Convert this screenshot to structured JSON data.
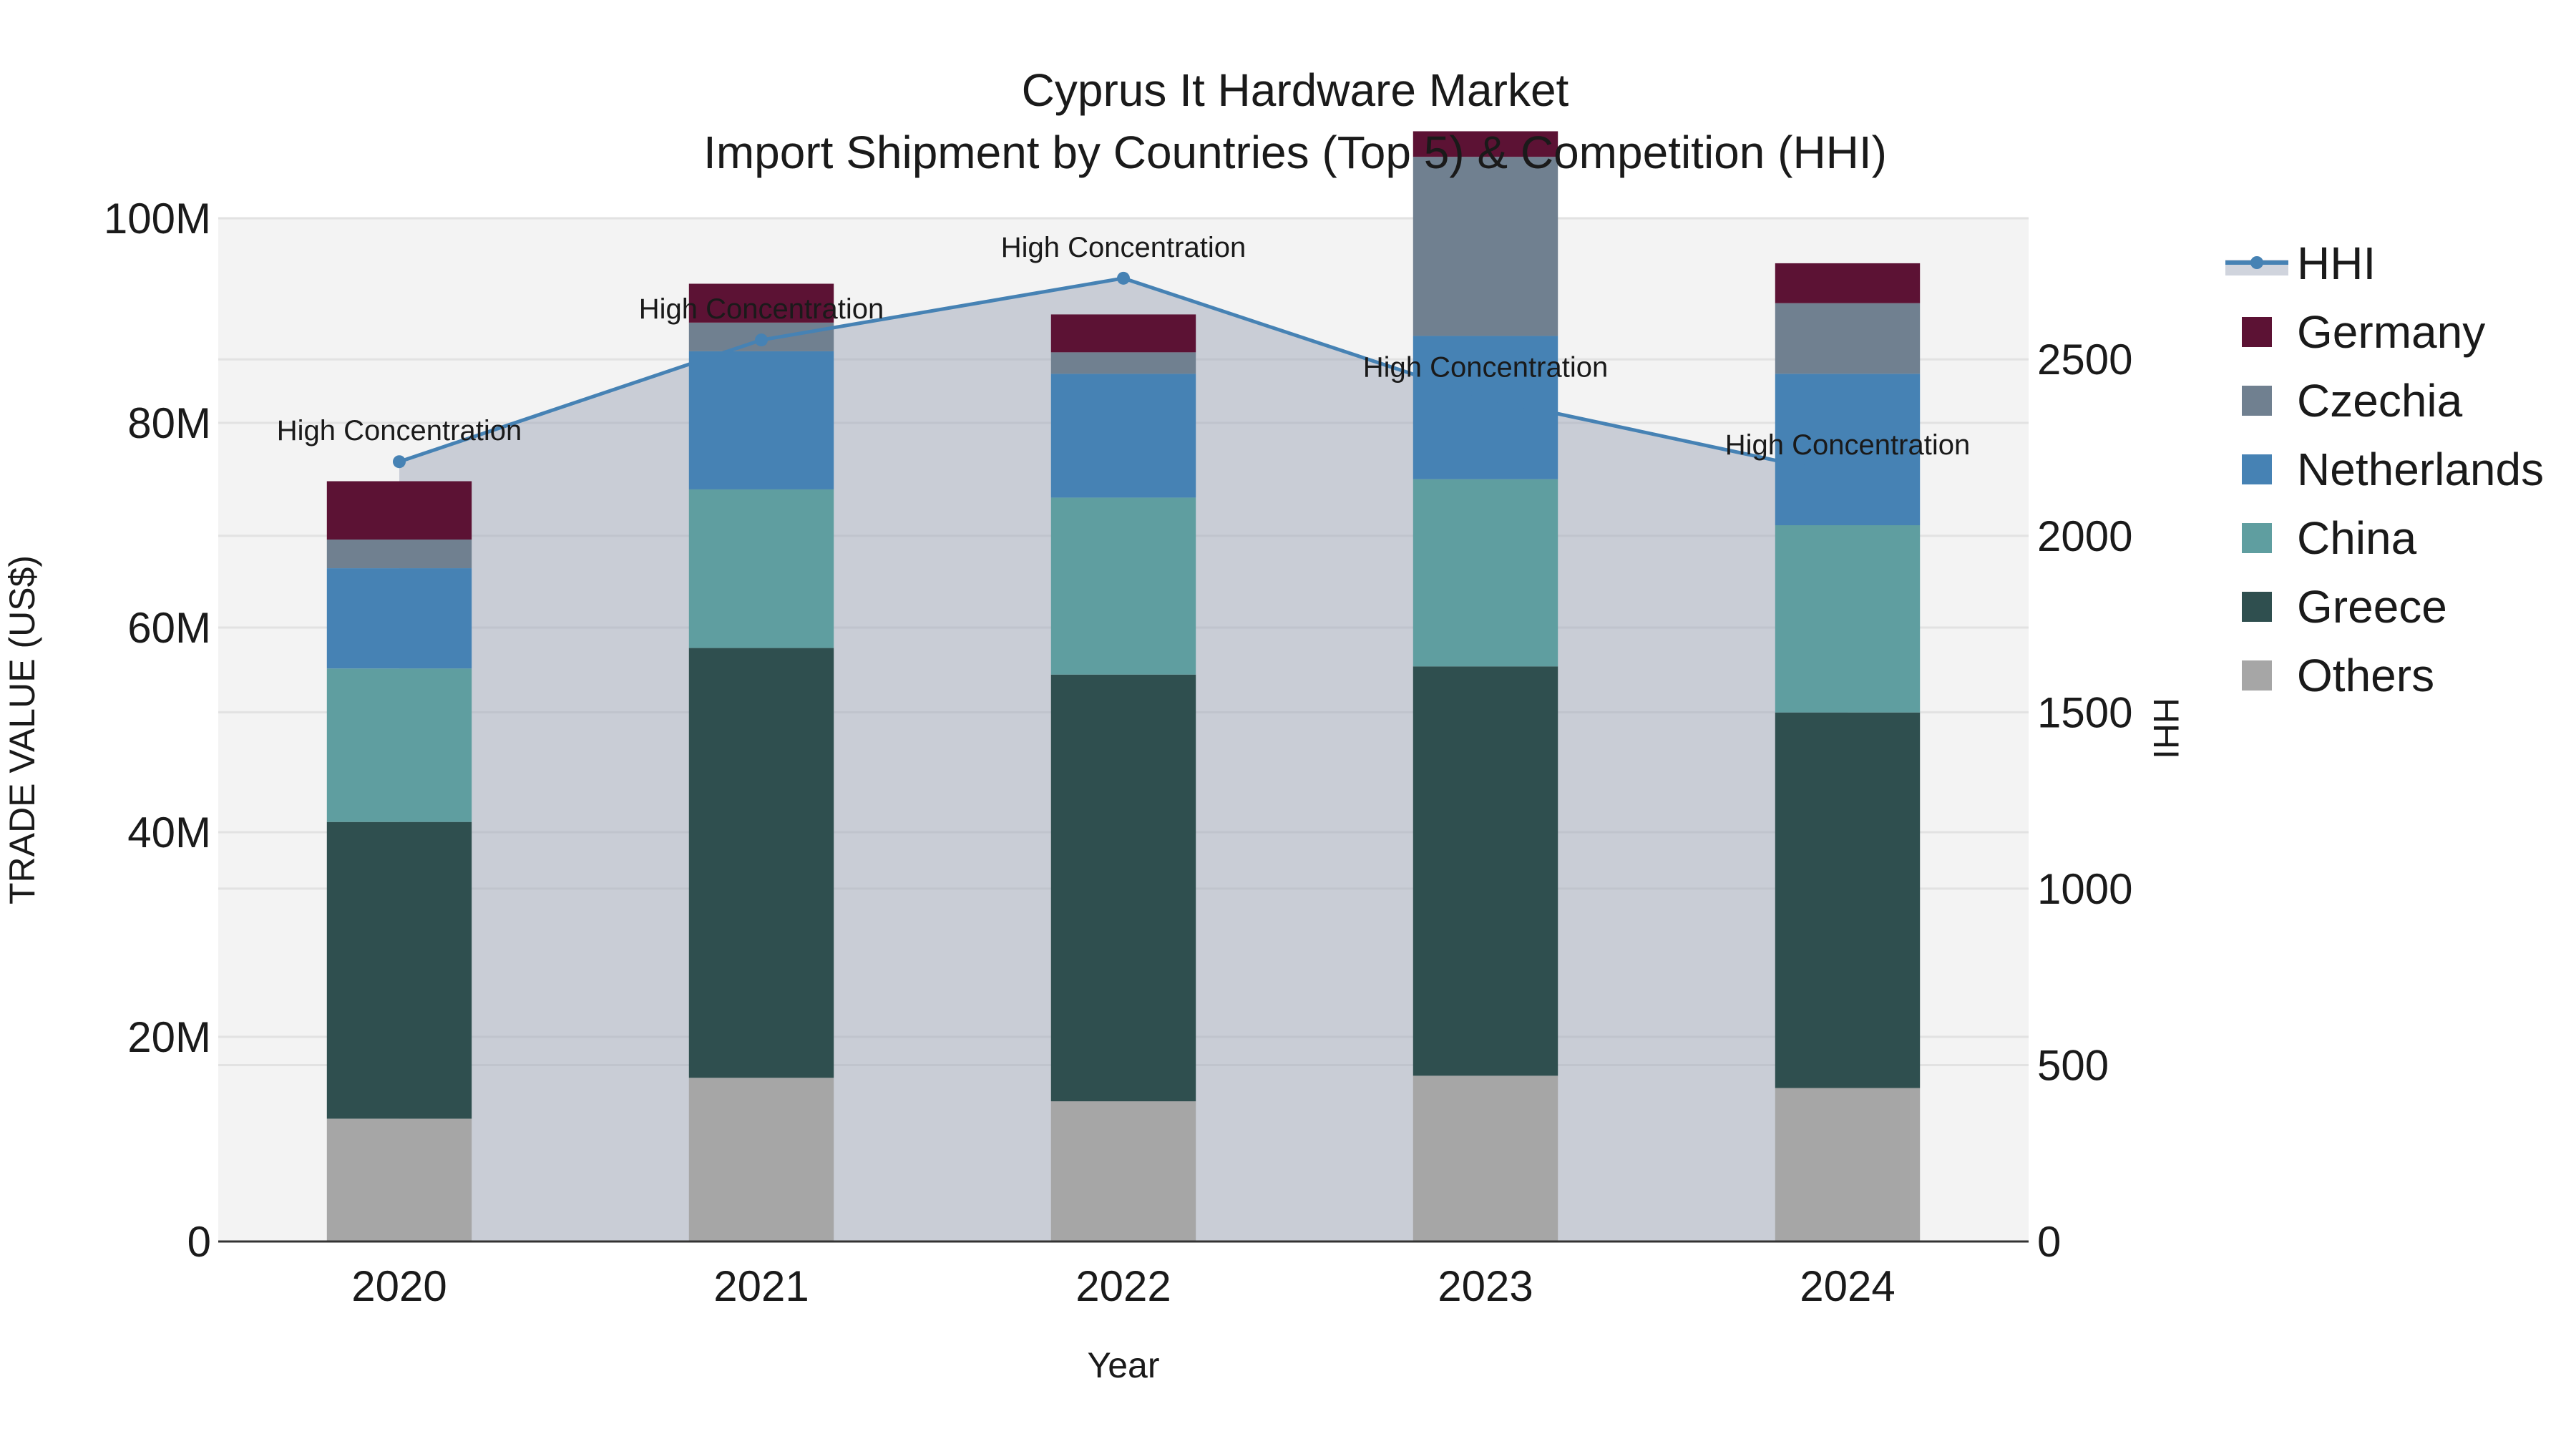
{
  "chart_data": {
    "type": "bar",
    "stacked": true,
    "title": "Cyprus It Hardware Market",
    "subtitle": "Import Shipment by Countries (Top 5) & Competition (HHI)",
    "xlabel": "Year",
    "ylabel": "TRADE VALUE (US$)",
    "y2label": "HHI",
    "categories": [
      "2020",
      "2021",
      "2022",
      "2023",
      "2024"
    ],
    "ylim": [
      0,
      100000000
    ],
    "y_ticks": [
      0,
      20000000,
      40000000,
      60000000,
      80000000,
      100000000
    ],
    "y_tick_labels": [
      "0",
      "20M",
      "40M",
      "60M",
      "80M",
      "100M"
    ],
    "y2lim": [
      0,
      2900
    ],
    "y2_ticks": [
      0,
      500,
      1000,
      1500,
      2000,
      2500
    ],
    "y2_tick_labels": [
      "0",
      "500",
      "1000",
      "1500",
      "2000",
      "2500"
    ],
    "grid": true,
    "legend_position": "right",
    "series": [
      {
        "name": "Others",
        "color": "#a6a6a6",
        "values": [
          12000000,
          16000000,
          13700000,
          16200000,
          15000000
        ]
      },
      {
        "name": "Greece",
        "color": "#2f4f4f",
        "values": [
          29000000,
          42000000,
          41700000,
          40000000,
          36700000
        ]
      },
      {
        "name": "China",
        "color": "#5f9ea0",
        "values": [
          15000000,
          15500000,
          17300000,
          18300000,
          18300000
        ]
      },
      {
        "name": "Netherlands",
        "color": "#4682b4",
        "values": [
          9800000,
          13500000,
          12100000,
          14000000,
          14800000
        ]
      },
      {
        "name": "Czechia",
        "color": "#708090",
        "values": [
          2800000,
          2800000,
          2100000,
          17500000,
          6900000
        ]
      },
      {
        "name": "Germany",
        "color": "#5c1234",
        "values": [
          5700000,
          3800000,
          3700000,
          2500000,
          3900000
        ]
      }
    ],
    "hhi": {
      "name": "HHI",
      "color": "#4682b4",
      "area_fill": "rgba(150,160,180,0.45)",
      "values": [
        2210,
        2555,
        2730,
        2390,
        2170
      ],
      "labels": [
        "High Concentration",
        "High Concentration",
        "High Concentration",
        "High Concentration",
        "High Concentration"
      ]
    },
    "legend_order": [
      "HHI",
      "Germany",
      "Czechia",
      "Netherlands",
      "China",
      "Greece",
      "Others"
    ]
  }
}
